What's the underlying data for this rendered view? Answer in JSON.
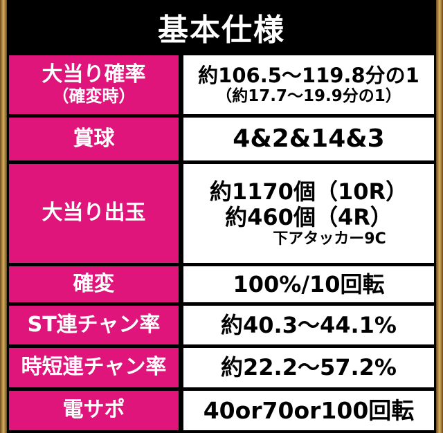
{
  "title": "基本仕様",
  "rows": [
    {
      "label": [
        "大当り確率",
        "（確変時）"
      ],
      "value": [
        "約106.5～119.8分の1",
        "（約17.7～19.9分の1）"
      ]
    },
    {
      "label": [
        "賞球"
      ],
      "value": [
        "4&2&14&3"
      ]
    },
    {
      "label": [
        "大当り出玉"
      ],
      "value": [
        "約1170個（10R）",
        "約460個（4R）",
        "下アタッカー9C"
      ]
    },
    {
      "label": [
        "確変"
      ],
      "value": [
        "100%/10回転"
      ]
    },
    {
      "label": [
        "ST連チャン率"
      ],
      "value": [
        "約40.3～44.1%"
      ]
    },
    {
      "label": [
        "時短連チャン率"
      ],
      "value": [
        "約22.2～57.2%"
      ]
    },
    {
      "label": [
        "電サポ"
      ],
      "value": [
        "40or70or100回転"
      ]
    }
  ]
}
